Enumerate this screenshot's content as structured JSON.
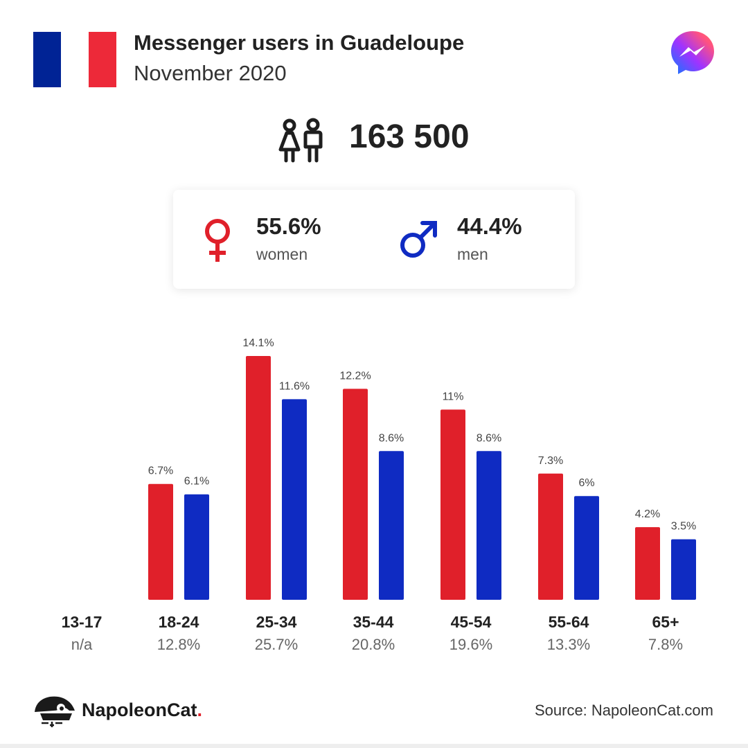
{
  "header": {
    "title": "Messenger users in Guadeloupe",
    "subtitle": "November 2020",
    "flag_colors": [
      "#002395",
      "#ffffff",
      "#ED2939"
    ],
    "flag_icon": "france-flag-icon",
    "app_icon": "messenger-icon"
  },
  "total": {
    "value": "163 500",
    "icon": "people-icon"
  },
  "gender": {
    "women": {
      "pct": "55.6%",
      "label": "women",
      "color": "#E0202A",
      "icon": "female-symbol-icon"
    },
    "men": {
      "pct": "44.4%",
      "label": "men",
      "color": "#0F2BC2",
      "icon": "male-symbol-icon"
    }
  },
  "chart_data": {
    "type": "bar",
    "categories": [
      "13-17",
      "18-24",
      "25-34",
      "35-44",
      "45-54",
      "55-64",
      "65+"
    ],
    "category_totals": [
      "n/a",
      "12.8%",
      "25.7%",
      "20.8%",
      "19.6%",
      "13.3%",
      "7.8%"
    ],
    "series": [
      {
        "values": [
          null,
          6.7,
          14.1,
          12.2,
          11,
          7.3,
          4.2
        ],
        "labels": [
          "",
          "6.7%",
          "14.1%",
          "12.2%",
          "11%",
          "7.3%",
          "4.2%"
        ],
        "color": "#E0202A"
      },
      {
        "values": [
          null,
          6.1,
          11.6,
          8.6,
          8.6,
          6,
          3.5
        ],
        "labels": [
          "",
          "6.1%",
          "11.6%",
          "8.6%",
          "8.6%",
          "6%",
          "3.5%"
        ],
        "color": "#0F2BC2"
      }
    ],
    "title": "",
    "xlabel": "",
    "ylabel": "",
    "ylim": [
      0,
      14.1
    ],
    "grid": false,
    "legend": "none"
  },
  "footer": {
    "brand_name": "NapoleonCat",
    "brand_dot": ".",
    "brand_icon": "napoleoncat-logo-icon",
    "source": "Source: NapoleonCat.com"
  }
}
